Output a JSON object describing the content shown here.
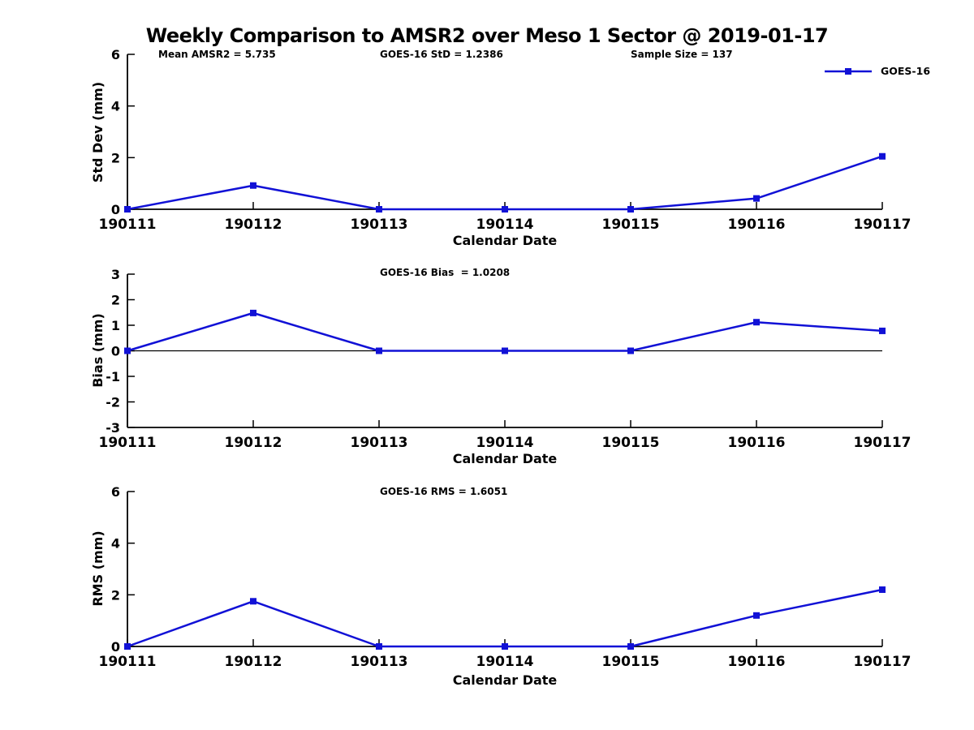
{
  "figure": {
    "title": "Weekly Comparison to AMSR2 over Meso 1 Sector @ 2019-01-17",
    "line_color": "#1111d6",
    "axis_color": "#000000",
    "background": "#ffffff"
  },
  "legend": {
    "label": "GOES-16",
    "position": "top-right",
    "marker": "square-icon"
  },
  "chart_data": [
    {
      "type": "line",
      "panel": "std-dev",
      "title": "Weekly Comparison to AMSR2 over Meso 1 Sector @ 2019-01-17",
      "x": [
        "190111",
        "190112",
        "190113",
        "190114",
        "190115",
        "190116",
        "190117"
      ],
      "series": [
        {
          "name": "GOES-16",
          "values": [
            0,
            0.92,
            0,
            0,
            0,
            0.42,
            2.05
          ]
        }
      ],
      "xlabel": "Calendar Date",
      "ylabel": "Std Dev (mm)",
      "ylim": [
        0,
        6
      ],
      "yticks": [
        0,
        2,
        4,
        6
      ],
      "zero_line": false,
      "grid": false,
      "legend_entries": [
        "GOES-16"
      ],
      "annotations": [
        "Mean AMSR2 = 5.735",
        "GOES-16 StD = 1.2386",
        "Sample Size = 137"
      ]
    },
    {
      "type": "line",
      "panel": "bias",
      "x": [
        "190111",
        "190112",
        "190113",
        "190114",
        "190115",
        "190116",
        "190117"
      ],
      "series": [
        {
          "name": "GOES-16",
          "values": [
            0,
            1.48,
            0,
            0,
            0,
            1.12,
            0.78
          ]
        }
      ],
      "xlabel": "Calendar Date",
      "ylabel": "Bias (mm)",
      "ylim": [
        -3,
        3
      ],
      "yticks": [
        -3,
        -2,
        -1,
        0,
        1,
        2,
        3
      ],
      "zero_line": true,
      "grid": false,
      "annotations": [
        "GOES-16 Bias  = 1.0208"
      ]
    },
    {
      "type": "line",
      "panel": "rms",
      "x": [
        "190111",
        "190112",
        "190113",
        "190114",
        "190115",
        "190116",
        "190117"
      ],
      "series": [
        {
          "name": "GOES-16",
          "values": [
            0,
            1.75,
            0,
            0,
            0,
            1.2,
            2.2
          ]
        }
      ],
      "xlabel": "Calendar Date",
      "ylabel": "RMS (mm)",
      "ylim": [
        0,
        6
      ],
      "yticks": [
        0,
        2,
        4,
        6
      ],
      "zero_line": false,
      "grid": false,
      "annotations": [
        "GOES-16 RMS = 1.6051"
      ]
    }
  ]
}
